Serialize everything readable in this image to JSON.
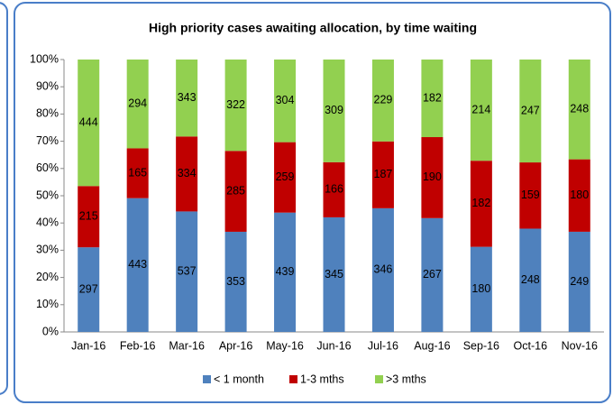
{
  "chart_data": {
    "type": "bar",
    "stacking": "percent",
    "title": "High priority cases awaiting allocation, by time waiting",
    "categories": [
      "Jan-16",
      "Feb-16",
      "Mar-16",
      "Apr-16",
      "May-16",
      "Jun-16",
      "Jul-16",
      "Aug-16",
      "Sep-16",
      "Oct-16",
      "Nov-16"
    ],
    "series": [
      {
        "name": "< 1 month",
        "color": "#4f81bd",
        "values": [
          297,
          443,
          537,
          353,
          439,
          345,
          346,
          267,
          180,
          248,
          249
        ]
      },
      {
        "name": "1-3 mths",
        "color": "#c00000",
        "values": [
          215,
          165,
          334,
          285,
          259,
          166,
          187,
          190,
          182,
          159,
          180
        ]
      },
      {
        "name": ">3 mths",
        "color": "#92d050",
        "values": [
          444,
          294,
          343,
          322,
          304,
          309,
          229,
          182,
          214,
          247,
          248
        ]
      }
    ],
    "ylim": [
      0,
      100
    ],
    "yticks": [
      {
        "value": 0,
        "label": "0%"
      },
      {
        "value": 10,
        "label": "10%"
      },
      {
        "value": 20,
        "label": "20%"
      },
      {
        "value": 30,
        "label": "30%"
      },
      {
        "value": 40,
        "label": "40%"
      },
      {
        "value": 50,
        "label": "50%"
      },
      {
        "value": 60,
        "label": "60%"
      },
      {
        "value": 70,
        "label": "70%"
      },
      {
        "value": 80,
        "label": "80%"
      },
      {
        "value": 90,
        "label": "90%"
      },
      {
        "value": 100,
        "label": "100%"
      }
    ],
    "grid": false,
    "legend": "bottom"
  }
}
